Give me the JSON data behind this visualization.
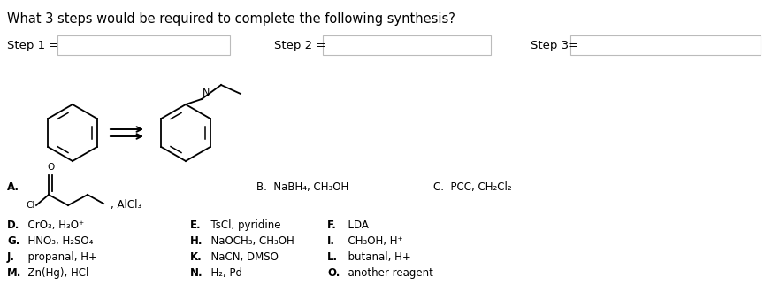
{
  "title": "What 3 steps would be required to complete the following synthesis?",
  "step_labels": [
    "Step 1 =",
    "Step 2 =",
    "Step 3="
  ],
  "bg_color": "#ffffff",
  "text_color": "#000000",
  "font_size_title": 10.5,
  "font_size_steps": 9.5,
  "font_size_choices": 8.5,
  "font_size_struct": 7.5
}
